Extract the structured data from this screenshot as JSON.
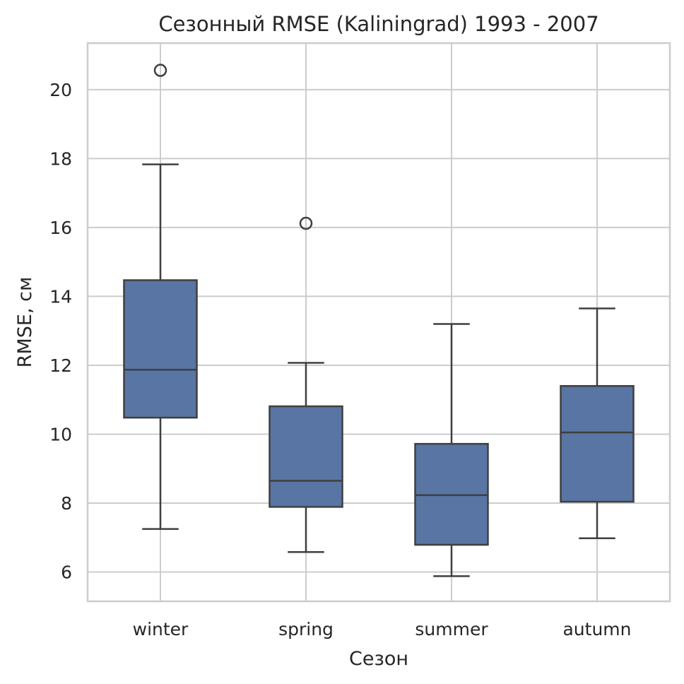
{
  "chart_data": {
    "type": "box",
    "title": "Сезонный RMSE (Kaliningrad) 1993 - 2007",
    "xlabel": "Сезон",
    "ylabel": "RMSE, см",
    "ylim": [
      5.15,
      21.35
    ],
    "yticks": [
      6,
      8,
      10,
      12,
      14,
      16,
      18,
      20
    ],
    "grid": true,
    "box_color": "#5875a4",
    "categories": [
      "winter",
      "spring",
      "summer",
      "autumn"
    ],
    "boxes": [
      {
        "category": "winter",
        "whisker_low": 7.25,
        "q1": 10.48,
        "median": 11.87,
        "q3": 14.47,
        "whisker_high": 17.83,
        "outliers": [
          20.56
        ]
      },
      {
        "category": "spring",
        "whisker_low": 6.58,
        "q1": 7.89,
        "median": 8.65,
        "q3": 10.81,
        "whisker_high": 12.07,
        "outliers": [
          16.12
        ]
      },
      {
        "category": "summer",
        "whisker_low": 5.88,
        "q1": 6.79,
        "median": 8.23,
        "q3": 9.72,
        "whisker_high": 13.2,
        "outliers": []
      },
      {
        "category": "autumn",
        "whisker_low": 6.98,
        "q1": 8.04,
        "median": 10.05,
        "q3": 11.4,
        "whisker_high": 13.65,
        "outliers": []
      }
    ]
  }
}
